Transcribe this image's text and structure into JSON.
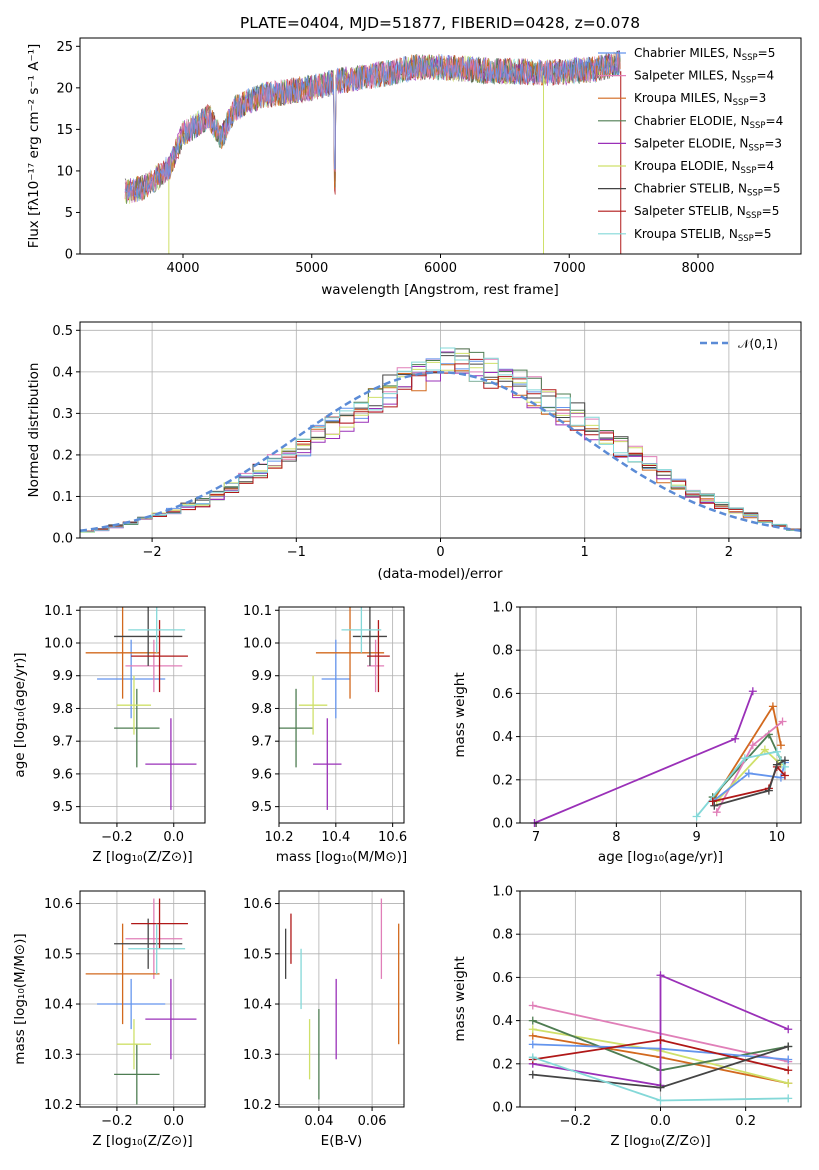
{
  "chart_data": [
    {
      "id": "spectrum",
      "type": "line",
      "title": "PLATE=0404, MJD=51877, FIBERID=0428, z=0.078",
      "xlabel": "wavelength [Angstrom, rest frame]",
      "ylabel": "Flux [fλ10⁻¹⁷ erg cm⁻² s⁻¹ A⁻¹]",
      "xlim": [
        3200,
        8800
      ],
      "ylim": [
        0,
        26
      ],
      "xticks": [
        "4000",
        "5000",
        "6000",
        "7000",
        "8000"
      ],
      "yticks": [
        "0",
        "5",
        "10",
        "15",
        "20",
        "25"
      ],
      "legend_position": "right",
      "series": [
        {
          "name": "Chabrier MILES, N",
          "sub": "SSP",
          "eq": "=5",
          "color": "#6495ed"
        },
        {
          "name": "Salpeter MILES, N",
          "sub": "SSP",
          "eq": "=4",
          "color": "#e07fb8"
        },
        {
          "name": "Kroupa MILES, N",
          "sub": "SSP",
          "eq": "=3",
          "color": "#d2691e"
        },
        {
          "name": "Chabrier ELODIE, N",
          "sub": "SSP",
          "eq": "=4",
          "color": "#4e7d52"
        },
        {
          "name": "Salpeter ELODIE, N",
          "sub": "SSP",
          "eq": "=3",
          "color": "#9a30b8"
        },
        {
          "name": "Kroupa ELODIE, N",
          "sub": "SSP",
          "eq": "=4",
          "color": "#cfe06a"
        },
        {
          "name": "Chabrier STELIB, N",
          "sub": "SSP",
          "eq": "=5",
          "color": "#444444"
        },
        {
          "name": "Salpeter STELIB, N",
          "sub": "SSP",
          "eq": "=5",
          "color": "#b01818"
        },
        {
          "name": "Kroupa STELIB, N",
          "sub": "SSP",
          "eq": "=5",
          "color": "#84d8d8"
        }
      ],
      "spectrum_shape": {
        "x": [
          3550,
          3700,
          3900,
          4000,
          4100,
          4200,
          4300,
          4400,
          4600,
          4800,
          5000,
          5200,
          5400,
          5600,
          5800,
          6000,
          6200,
          6400,
          6600,
          6800,
          7000,
          7200,
          7400
        ],
        "y": [
          7.5,
          8.0,
          10.5,
          14.5,
          15.5,
          16.5,
          14.0,
          17.5,
          19.0,
          19.5,
          20.0,
          20.8,
          21.3,
          21.8,
          22.5,
          22.5,
          22.3,
          22.0,
          22.0,
          21.8,
          22.0,
          22.2,
          23.0
        ]
      }
    },
    {
      "id": "residuals",
      "type": "bar",
      "xlabel": "(data-model)/error",
      "ylabel": "Normed distribution",
      "xlim": [
        -2.5,
        2.5
      ],
      "ylim": [
        0,
        0.52
      ],
      "xticks": [
        "−2",
        "−1",
        "0",
        "1",
        "2"
      ],
      "yticks": [
        "0.0",
        "0.1",
        "0.2",
        "0.3",
        "0.4",
        "0.5"
      ],
      "legend": "𝒩(0,1)",
      "reference_curve": "normal(0,1)",
      "bin_width": 0.1,
      "bin_start": -2.5,
      "base_hist": [
        0.015,
        0.02,
        0.028,
        0.035,
        0.045,
        0.055,
        0.065,
        0.075,
        0.085,
        0.1,
        0.12,
        0.14,
        0.16,
        0.18,
        0.2,
        0.22,
        0.25,
        0.27,
        0.29,
        0.31,
        0.33,
        0.35,
        0.37,
        0.39,
        0.41,
        0.43,
        0.42,
        0.41,
        0.4,
        0.39,
        0.37,
        0.35,
        0.33,
        0.31,
        0.29,
        0.27,
        0.25,
        0.22,
        0.2,
        0.18,
        0.15,
        0.13,
        0.11,
        0.095,
        0.08,
        0.065,
        0.055,
        0.04,
        0.03,
        0.02
      ],
      "series_offsets": [
        0.0,
        0.02,
        -0.01,
        0.015,
        -0.02,
        0.01,
        0.025,
        -0.015,
        0.005
      ]
    },
    {
      "id": "age_vs_Z",
      "type": "scatter",
      "xlabel": "Z [log₁₀(Z/Z⊙)]",
      "ylabel": "age  [log₁₀(age/yr)]",
      "xlim": [
        -0.33,
        0.11
      ],
      "ylim": [
        9.45,
        10.11
      ],
      "xticks": [
        "−0.2",
        "0.0"
      ],
      "xtick_values": [
        -0.2,
        0.0
      ],
      "yticks": [
        "9.5",
        "9.6",
        "9.7",
        "9.8",
        "9.9",
        "10.0",
        "10.1"
      ],
      "ytick_values": [
        9.5,
        9.6,
        9.7,
        9.8,
        9.9,
        10.0,
        10.1
      ],
      "points": [
        {
          "x": -0.15,
          "xerr": 0.12,
          "y": 9.89,
          "yerr": 0.12,
          "color": "#6495ed"
        },
        {
          "x": -0.07,
          "xerr": 0.1,
          "y": 9.93,
          "yerr": 0.08,
          "color": "#e07fb8"
        },
        {
          "x": -0.18,
          "xerr": 0.13,
          "y": 9.97,
          "yerr": 0.14,
          "color": "#d2691e"
        },
        {
          "x": -0.13,
          "xerr": 0.08,
          "y": 9.74,
          "yerr": 0.12,
          "color": "#4e7d52"
        },
        {
          "x": -0.01,
          "xerr": 0.09,
          "y": 9.63,
          "yerr": 0.14,
          "color": "#9a30b8"
        },
        {
          "x": -0.14,
          "xerr": 0.06,
          "y": 9.81,
          "yerr": 0.09,
          "color": "#cfe06a"
        },
        {
          "x": -0.09,
          "xerr": 0.12,
          "y": 10.02,
          "yerr": 0.09,
          "color": "#444444"
        },
        {
          "x": -0.05,
          "xerr": 0.1,
          "y": 9.96,
          "yerr": 0.11,
          "color": "#b01818"
        },
        {
          "x": -0.06,
          "xerr": 0.1,
          "y": 10.04,
          "yerr": 0.07,
          "color": "#84d8d8"
        }
      ]
    },
    {
      "id": "age_vs_mass",
      "type": "scatter",
      "xlabel": "mass [log₁₀(M/M⊙)]",
      "xlim": [
        10.2,
        10.64
      ],
      "ylim": [
        9.45,
        10.11
      ],
      "xticks": [
        "10.2",
        "10.4",
        "10.6"
      ],
      "xtick_values": [
        10.2,
        10.4,
        10.6
      ],
      "yticks": [
        "9.5",
        "9.6",
        "9.7",
        "9.8",
        "9.9",
        "10.0",
        "10.1"
      ],
      "ytick_values": [
        9.5,
        9.6,
        9.7,
        9.8,
        9.9,
        10.0,
        10.1
      ],
      "points": [
        {
          "x": 10.4,
          "xerr": 0.05,
          "y": 9.89,
          "yerr": 0.12,
          "color": "#6495ed"
        },
        {
          "x": 10.54,
          "xerr": 0.03,
          "y": 9.93,
          "yerr": 0.08,
          "color": "#e07fb8"
        },
        {
          "x": 10.45,
          "xerr": 0.12,
          "y": 9.97,
          "yerr": 0.14,
          "color": "#d2691e"
        },
        {
          "x": 10.26,
          "xerr": 0.06,
          "y": 9.74,
          "yerr": 0.12,
          "color": "#4e7d52"
        },
        {
          "x": 10.37,
          "xerr": 0.05,
          "y": 9.63,
          "yerr": 0.14,
          "color": "#9a30b8"
        },
        {
          "x": 10.32,
          "xerr": 0.05,
          "y": 9.81,
          "yerr": 0.09,
          "color": "#cfe06a"
        },
        {
          "x": 10.52,
          "xerr": 0.06,
          "y": 10.02,
          "yerr": 0.09,
          "color": "#444444"
        },
        {
          "x": 10.55,
          "xerr": 0.04,
          "y": 9.96,
          "yerr": 0.11,
          "color": "#b01818"
        },
        {
          "x": 10.49,
          "xerr": 0.07,
          "y": 10.04,
          "yerr": 0.07,
          "color": "#84d8d8"
        }
      ]
    },
    {
      "id": "massweight_vs_age",
      "type": "line",
      "xlabel": "age  [log₁₀(age/yr)]",
      "ylabel": "mass weight",
      "xlim": [
        6.8,
        10.3
      ],
      "ylim": [
        0,
        1.0
      ],
      "xticks": [
        "7",
        "8",
        "9",
        "10"
      ],
      "xtick_values": [
        7,
        8,
        9,
        10
      ],
      "yticks": [
        "0.0",
        "0.2",
        "0.4",
        "0.6",
        "0.8",
        "1.0"
      ],
      "ytick_values": [
        0,
        0.2,
        0.4,
        0.6,
        0.8,
        1.0
      ],
      "series": [
        {
          "color": "#9a30b8",
          "x": [
            6.98,
            9.48,
            9.7
          ],
          "y": [
            0.0,
            0.39,
            0.61
          ]
        },
        {
          "color": "#d2691e",
          "x": [
            9.2,
            9.95,
            10.05
          ],
          "y": [
            0.1,
            0.54,
            0.36
          ]
        },
        {
          "color": "#4e7d52",
          "x": [
            9.2,
            9.9,
            10.05
          ],
          "y": [
            0.12,
            0.41,
            0.29
          ]
        },
        {
          "color": "#e07fb8",
          "x": [
            9.25,
            9.7,
            10.07
          ],
          "y": [
            0.05,
            0.36,
            0.47
          ]
        },
        {
          "color": "#cfe06a",
          "x": [
            9.25,
            9.85,
            10.05
          ],
          "y": [
            0.1,
            0.34,
            0.27
          ]
        },
        {
          "color": "#6495ed",
          "x": [
            9.2,
            9.65,
            10.05,
            10.1
          ],
          "y": [
            0.1,
            0.23,
            0.21,
            0.28
          ]
        },
        {
          "color": "#84d8d8",
          "x": [
            9.0,
            9.6,
            10.0,
            10.1
          ],
          "y": [
            0.03,
            0.3,
            0.33,
            0.26
          ]
        },
        {
          "color": "#b01818",
          "x": [
            9.2,
            9.9,
            10.0,
            10.1
          ],
          "y": [
            0.1,
            0.16,
            0.26,
            0.22
          ]
        },
        {
          "color": "#444444",
          "x": [
            9.22,
            9.9,
            10.0,
            10.1
          ],
          "y": [
            0.08,
            0.15,
            0.27,
            0.29
          ]
        }
      ]
    },
    {
      "id": "mass_vs_Z",
      "type": "scatter",
      "xlabel": "Z [log₁₀(Z/Z⊙)]",
      "ylabel": "mass [log₁₀(M/M⊙)]",
      "xlim": [
        -0.33,
        0.11
      ],
      "ylim": [
        10.195,
        10.625
      ],
      "xticks": [
        "−0.2",
        "0.0"
      ],
      "xtick_values": [
        -0.2,
        0.0
      ],
      "yticks": [
        "10.2",
        "10.3",
        "10.4",
        "10.5",
        "10.6"
      ],
      "ytick_values": [
        10.2,
        10.3,
        10.4,
        10.5,
        10.6
      ],
      "points": [
        {
          "x": -0.15,
          "xerr": 0.12,
          "y": 10.4,
          "yerr": 0.05,
          "color": "#6495ed"
        },
        {
          "x": -0.07,
          "xerr": 0.1,
          "y": 10.53,
          "yerr": 0.08,
          "color": "#e07fb8"
        },
        {
          "x": -0.18,
          "xerr": 0.13,
          "y": 10.46,
          "yerr": 0.1,
          "color": "#d2691e"
        },
        {
          "x": -0.13,
          "xerr": 0.08,
          "y": 10.26,
          "yerr": 0.06,
          "color": "#4e7d52"
        },
        {
          "x": -0.01,
          "xerr": 0.09,
          "y": 10.37,
          "yerr": 0.08,
          "color": "#9a30b8"
        },
        {
          "x": -0.14,
          "xerr": 0.06,
          "y": 10.32,
          "yerr": 0.05,
          "color": "#cfe06a"
        },
        {
          "x": -0.09,
          "xerr": 0.12,
          "y": 10.52,
          "yerr": 0.05,
          "color": "#444444"
        },
        {
          "x": -0.05,
          "xerr": 0.1,
          "y": 10.56,
          "yerr": 0.05,
          "color": "#b01818"
        },
        {
          "x": -0.06,
          "xerr": 0.1,
          "y": 10.51,
          "yerr": 0.05,
          "color": "#84d8d8"
        }
      ]
    },
    {
      "id": "mass_vs_ebv",
      "type": "scatter",
      "xlabel": "E(B-V)",
      "xlim": [
        0.025,
        0.072
      ],
      "ylim": [
        10.195,
        10.625
      ],
      "xticks": [
        "0.04",
        "0.06"
      ],
      "xtick_values": [
        0.04,
        0.06
      ],
      "yticks": [
        "10.2",
        "10.3",
        "10.4",
        "10.5",
        "10.6"
      ],
      "ytick_values": [
        10.2,
        10.3,
        10.4,
        10.5,
        10.6
      ],
      "points": [
        {
          "x": 0.0275,
          "y": 10.5,
          "yerr": 0.05,
          "color": "#444444"
        },
        {
          "x": 0.0295,
          "y": 10.53,
          "yerr": 0.05,
          "color": "#b01818"
        },
        {
          "x": 0.0333,
          "y": 10.45,
          "yerr": 0.06,
          "color": "#84d8d8"
        },
        {
          "x": 0.0365,
          "y": 10.31,
          "yerr": 0.06,
          "color": "#cfe06a"
        },
        {
          "x": 0.04,
          "y": 10.3,
          "yerr": 0.09,
          "color": "#4e7d52"
        },
        {
          "x": 0.0465,
          "y": 10.37,
          "yerr": 0.08,
          "color": "#9a30b8"
        },
        {
          "x": 0.0635,
          "y": 10.53,
          "yerr": 0.08,
          "color": "#e07fb8"
        },
        {
          "x": 0.07,
          "y": 10.44,
          "yerr": 0.12,
          "color": "#d2691e"
        }
      ]
    },
    {
      "id": "massweight_vs_Z",
      "type": "line",
      "xlabel": "Z [log₁₀(Z/Z⊙)]",
      "ylabel": "mass weight",
      "xlim": [
        -0.33,
        0.33
      ],
      "ylim": [
        0,
        1.0
      ],
      "xticks": [
        "−0.2",
        "0.0",
        "0.2"
      ],
      "xtick_values": [
        -0.2,
        0.0,
        0.2
      ],
      "yticks": [
        "0.0",
        "0.2",
        "0.4",
        "0.6",
        "0.8",
        "1.0"
      ],
      "ytick_values": [
        0,
        0.2,
        0.4,
        0.6,
        0.8,
        1.0
      ],
      "series": [
        {
          "color": "#e07fb8",
          "x": [
            -0.3,
            0.3
          ],
          "y": [
            0.47,
            0.21
          ]
        },
        {
          "color": "#d2691e",
          "x": [
            -0.3,
            0.0,
            0.3
          ],
          "y": [
            0.33,
            0.23,
            0.11
          ]
        },
        {
          "color": "#cfe06a",
          "x": [
            -0.3,
            0.0,
            0.3
          ],
          "y": [
            0.36,
            0.26,
            0.11
          ]
        },
        {
          "color": "#4e7d52",
          "x": [
            -0.3,
            0.0,
            0.3
          ],
          "y": [
            0.4,
            0.17,
            0.28
          ]
        },
        {
          "color": "#6495ed",
          "x": [
            -0.3,
            0.0,
            0.3
          ],
          "y": [
            0.29,
            0.27,
            0.22
          ]
        },
        {
          "color": "#9a30b8",
          "x": [
            -0.3,
            0.0,
            0.0,
            0.3
          ],
          "y": [
            0.2,
            0.1,
            0.61,
            0.36
          ]
        },
        {
          "color": "#b01818",
          "x": [
            -0.3,
            0.0,
            0.3
          ],
          "y": [
            0.22,
            0.31,
            0.17
          ]
        },
        {
          "color": "#444444",
          "x": [
            -0.3,
            0.0,
            0.3
          ],
          "y": [
            0.15,
            0.09,
            0.28
          ]
        },
        {
          "color": "#84d8d8",
          "x": [
            -0.3,
            0.0,
            0.3
          ],
          "y": [
            0.23,
            0.03,
            0.04
          ]
        }
      ]
    }
  ]
}
